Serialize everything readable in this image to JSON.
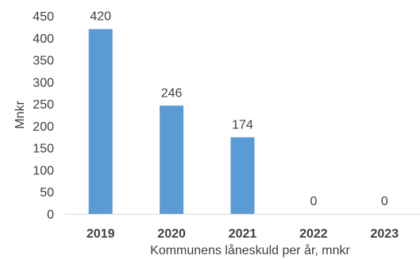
{
  "chart_data": {
    "type": "bar",
    "categories": [
      "2019",
      "2020",
      "2021",
      "2022",
      "2023"
    ],
    "values": [
      420,
      246,
      174,
      0,
      0
    ],
    "data_labels": [
      "420",
      "246",
      "174",
      "0",
      "0"
    ],
    "yticks": [
      "0",
      "50",
      "100",
      "150",
      "200",
      "250",
      "300",
      "350",
      "400",
      "450"
    ],
    "ylim": [
      0,
      450
    ],
    "ylabel": "Mnkr",
    "xlabel": "Kommunens låneskuld per år, mnkr",
    "grid": false,
    "legend": "none",
    "bar_color": "#5B9BD5",
    "axis_color": "#D9D9D9",
    "text_color": "#404040"
  }
}
